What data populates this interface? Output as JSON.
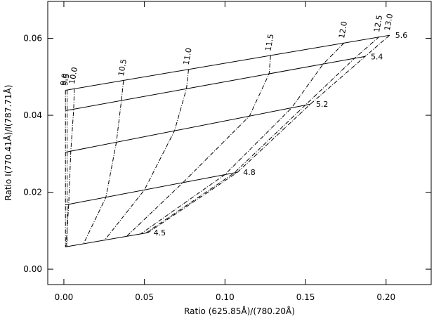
{
  "chart_data": {
    "type": "line",
    "x_label": "Ratio (625.85Å)/(780.20Å)",
    "y_label": "Ratio I(770.41Å)/I(787.71Å)",
    "xlim": [
      -0.01,
      0.228
    ],
    "ylim": [
      -0.004,
      0.0696
    ],
    "xticks": [
      {
        "value": 0,
        "label": "0.00"
      },
      {
        "value": 0.05,
        "label": "0.05"
      },
      {
        "value": 0.1,
        "label": "0.10"
      },
      {
        "value": 0.15,
        "label": "0.15"
      },
      {
        "value": 0.2,
        "label": "0.20"
      }
    ],
    "yticks": [
      {
        "value": 0,
        "label": "0.00"
      },
      {
        "value": 0.02,
        "label": "0.02"
      },
      {
        "value": 0.04,
        "label": "0.04"
      },
      {
        "value": 0.06,
        "label": "0.06"
      }
    ],
    "series": [
      {
        "name": "4.5",
        "style": "solid",
        "color": "#000000",
        "x": [
          0.001,
          0.0522
        ],
        "values": [
          0.0058,
          0.0095
        ]
      },
      {
        "name": "4.8",
        "style": "solid",
        "color": "#000000",
        "x": [
          0.001,
          0.1078
        ],
        "values": [
          0.0167,
          0.0252
        ]
      },
      {
        "name": "5.2",
        "style": "solid",
        "color": "#000000",
        "x": [
          0.001,
          0.153
        ],
        "values": [
          0.0304,
          0.0429
        ]
      },
      {
        "name": "5.4",
        "style": "solid",
        "color": "#000000",
        "x": [
          0.001,
          0.187
        ],
        "values": [
          0.0412,
          0.0553
        ]
      },
      {
        "name": "5.6",
        "style": "solid",
        "color": "#000000",
        "x": [
          0.001,
          0.2022
        ],
        "values": [
          0.0465,
          0.0608
        ]
      },
      {
        "name": "9.0",
        "style": "dashdot",
        "color": "#000000",
        "x": [
          0.001,
          0.001,
          0.001,
          0.001,
          0.001
        ],
        "values": [
          0.0465,
          0.0412,
          0.0304,
          0.0167,
          0.0058
        ]
      },
      {
        "name": "9.5",
        "style": "dashdot",
        "color": "#000000",
        "x": [
          0.002,
          0.002,
          0.002,
          0.002,
          0.002
        ],
        "values": [
          0.0465,
          0.0413,
          0.0305,
          0.0168,
          0.0058
        ]
      },
      {
        "name": "10.0",
        "style": "dashdot",
        "color": "#000000",
        "x": [
          0.0065,
          0.0061,
          0.0043,
          0.003,
          0.0013
        ],
        "values": [
          0.0469,
          0.0416,
          0.0307,
          0.0168,
          0.0058
        ]
      },
      {
        "name": "10.5",
        "style": "dashdot",
        "color": "#000000",
        "x": [
          0.037,
          0.0357,
          0.0326,
          0.0261,
          0.0122
        ],
        "values": [
          0.049,
          0.0438,
          0.033,
          0.0187,
          0.0066
        ]
      },
      {
        "name": "11.0",
        "style": "dashdot",
        "color": "#000000",
        "x": [
          0.0774,
          0.0761,
          0.0687,
          0.05,
          0.0252
        ],
        "values": [
          0.0519,
          0.0469,
          0.036,
          0.0206,
          0.0075
        ]
      },
      {
        "name": "11.5",
        "style": "dashdot",
        "color": "#000000",
        "x": [
          0.1283,
          0.1274,
          0.1152,
          0.0739,
          0.0391
        ],
        "values": [
          0.0555,
          0.0508,
          0.0398,
          0.0225,
          0.0086
        ]
      },
      {
        "name": "12.0",
        "style": "dashdot",
        "color": "#000000",
        "x": [
          0.1739,
          0.1609,
          0.1413,
          0.1,
          0.0478
        ],
        "values": [
          0.0588,
          0.0533,
          0.0419,
          0.0246,
          0.0092
        ]
      },
      {
        "name": "12.5",
        "style": "dashdot",
        "color": "#000000",
        "x": [
          0.1957,
          0.1804,
          0.15,
          0.1057,
          0.0509
        ],
        "values": [
          0.0604,
          0.0548,
          0.0427,
          0.025,
          0.0094
        ]
      },
      {
        "name": "13.0",
        "style": "dashdot",
        "color": "#000000",
        "x": [
          0.2022,
          0.187,
          0.153,
          0.1078,
          0.0522
        ],
        "values": [
          0.0608,
          0.0553,
          0.0429,
          0.0252,
          0.0095
        ]
      }
    ]
  }
}
